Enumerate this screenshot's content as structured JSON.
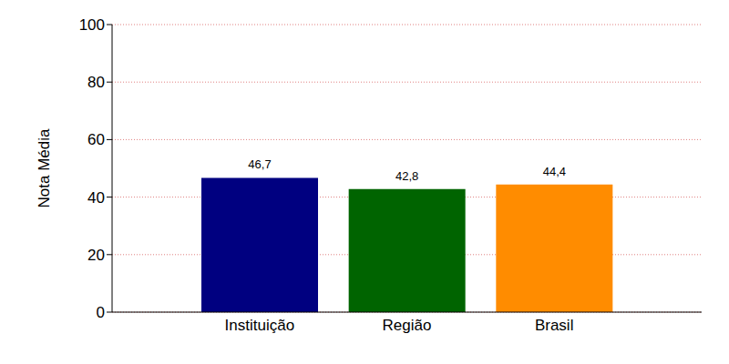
{
  "chart_data": {
    "type": "bar",
    "y_label": "Nota Média",
    "categories": [
      "Instituição",
      "Região",
      "Brasil"
    ],
    "values": [
      46.7,
      42.8,
      44.4
    ],
    "value_labels": [
      "46,7",
      "42,8",
      "44,4"
    ],
    "colors": [
      "#000080",
      "#006400",
      "#ff8c00"
    ],
    "ylim": [
      0,
      100
    ],
    "yticks": [
      0,
      20,
      40,
      60,
      80,
      100
    ],
    "grid": true,
    "data_labels": true
  }
}
